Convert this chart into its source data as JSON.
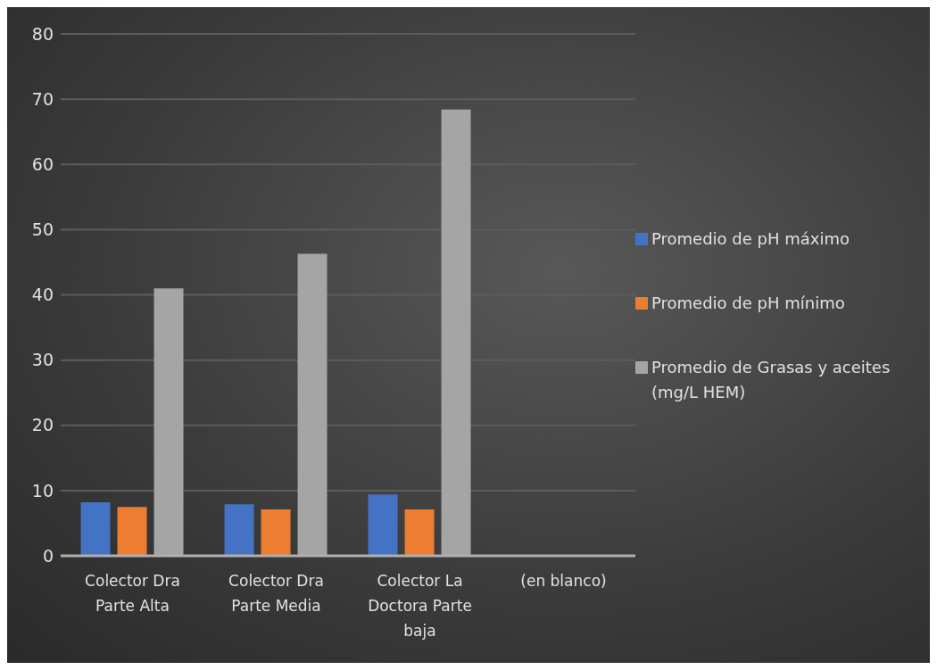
{
  "chart_data": {
    "type": "bar",
    "categories": [
      "Colector Dra Parte Alta",
      "Colector Dra Parte Media",
      "Colector La Doctora Parte baja",
      "(en blanco)"
    ],
    "series": [
      {
        "name": "Promedio de pH máximo",
        "color": "#4472c4",
        "values": [
          8.2,
          7.9,
          9.4,
          null
        ]
      },
      {
        "name": "Promedio de pH mínimo",
        "color": "#ed7d31",
        "values": [
          7.5,
          7.1,
          7.1,
          null
        ]
      },
      {
        "name": "Promedio de Grasas y aceites (mg/L HEM)",
        "color": "#a5a5a5",
        "values": [
          41.0,
          46.3,
          68.4,
          null
        ]
      }
    ],
    "ylim": [
      0,
      80
    ],
    "yticks": [
      0,
      10,
      20,
      30,
      40,
      50,
      60,
      70,
      80
    ],
    "grid": "y",
    "legend": "right"
  }
}
